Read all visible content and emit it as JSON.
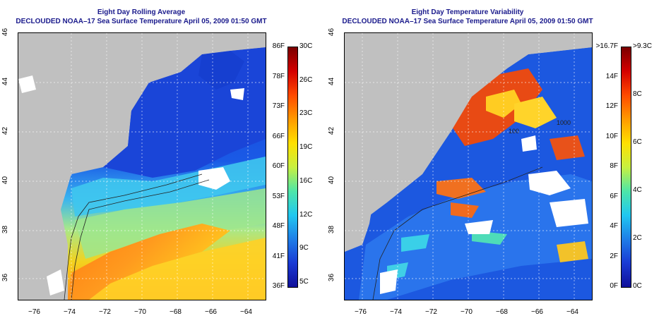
{
  "left_panel": {
    "title": "Eight Day Rolling Average",
    "subtitle": "DECLOUDED NOAA–17 Sea Surface Temperature April 05, 2009 01:50 GMT",
    "colorbar_f": [
      "86F",
      "78F",
      "73F",
      "66F",
      "60F",
      "53F",
      "48F",
      "41F",
      "36F"
    ],
    "colorbar_c": [
      "30C",
      "26C",
      "23C",
      "19C",
      "16C",
      "12C",
      "9C",
      "5C"
    ]
  },
  "right_panel": {
    "title": "Eight Day Temperature Variability",
    "subtitle": "DECLOUDED NOAA–17 Sea Surface Temperature April 05, 2009 01:50 GMT",
    "colorbar_f": [
      ">16.7F",
      "14F",
      "12F",
      "10F",
      "8F",
      "6F",
      "4F",
      "2F",
      "0F"
    ],
    "colorbar_c": [
      ">9.3C",
      "8C",
      "6C",
      "4C",
      "2C",
      "0C"
    ]
  },
  "lat_ticks": [
    "46",
    "44",
    "42",
    "40",
    "38",
    "36"
  ],
  "lon_ticks": [
    "−76",
    "−74",
    "−72",
    "−70",
    "−68",
    "−66",
    "−64"
  ],
  "contour_labels": [
    "100",
    "1000"
  ],
  "colors": {
    "land": "#c0c0c0",
    "title": "#1a1a8c",
    "cloud": "#ffffff"
  }
}
